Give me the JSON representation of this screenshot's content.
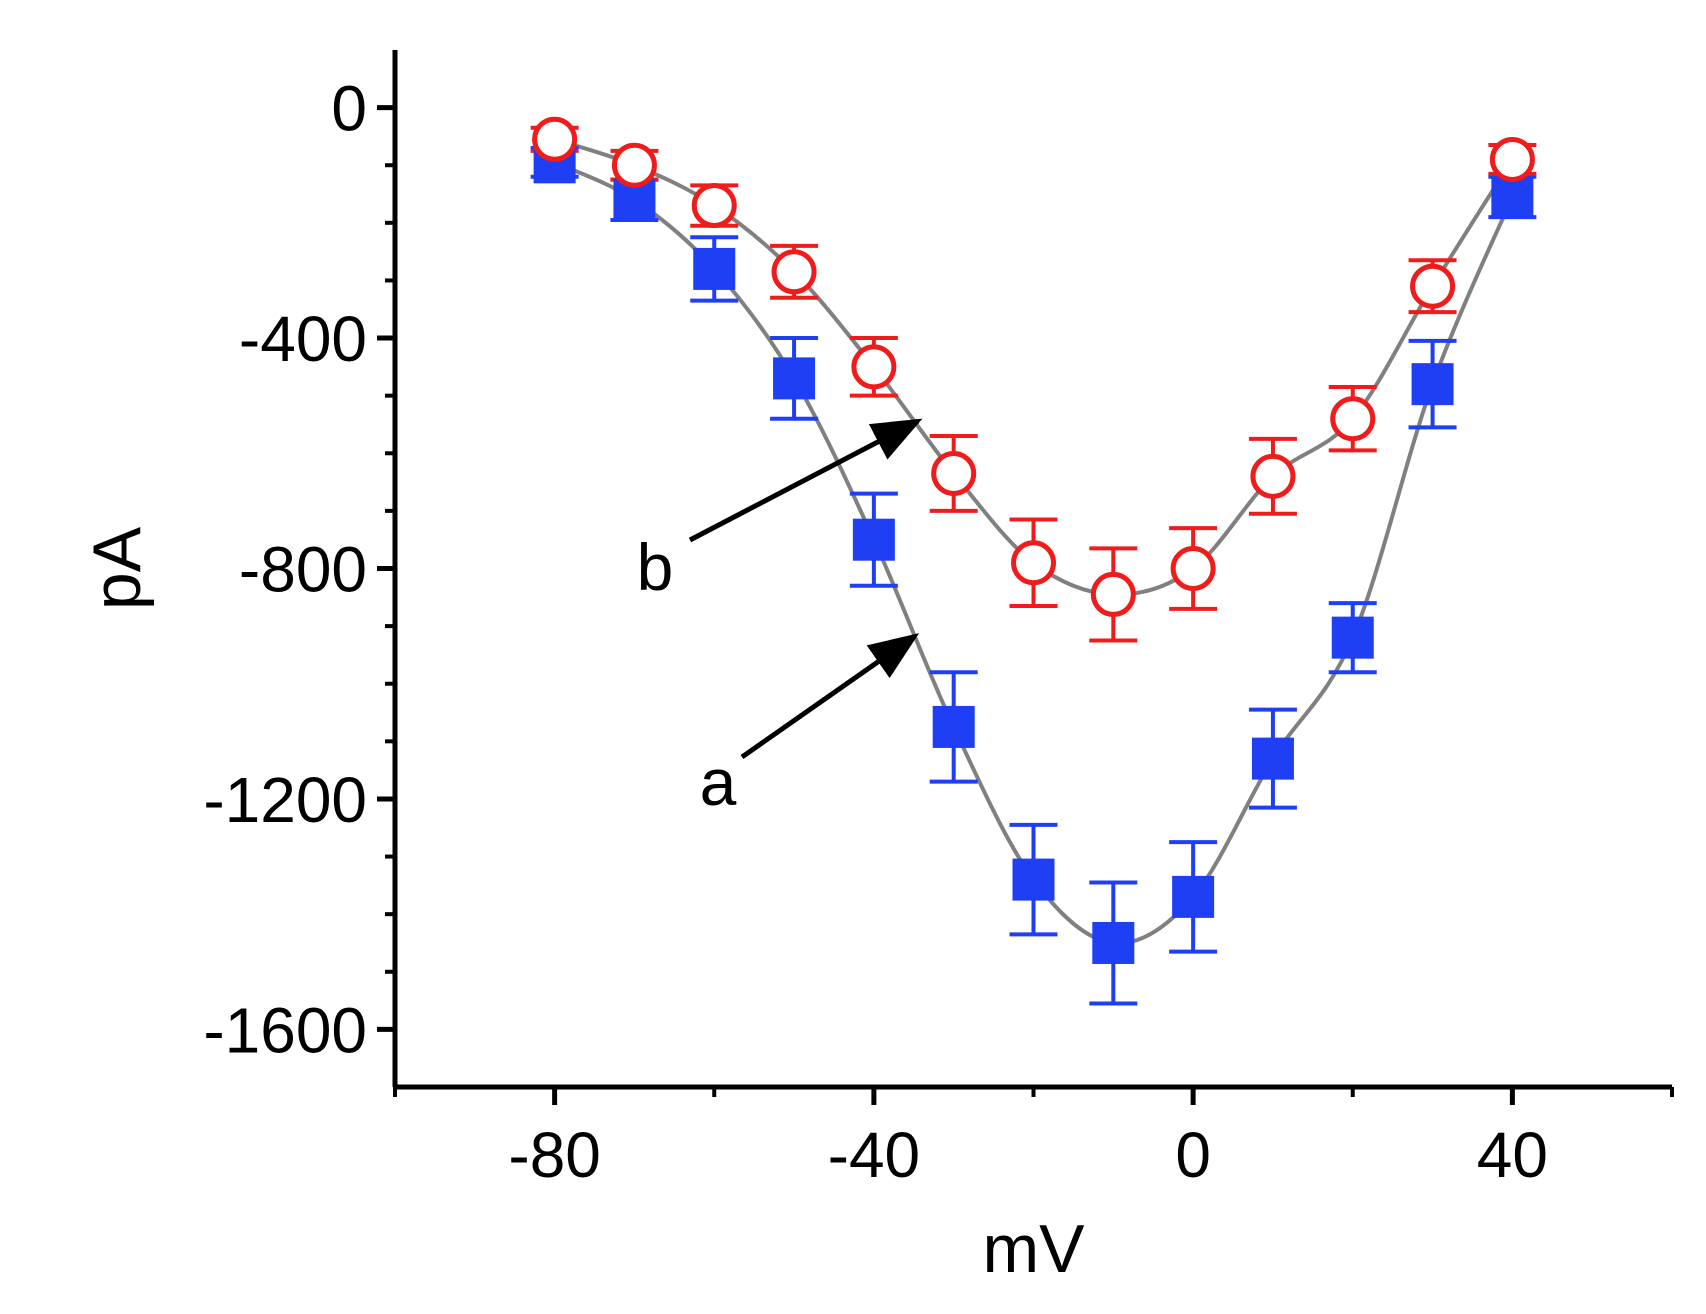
{
  "chart_data": {
    "type": "line",
    "title": "",
    "xlabel": "mV",
    "ylabel": "pA",
    "xlim": [
      -100,
      60
    ],
    "ylim": [
      -1700,
      100
    ],
    "xticks": [
      -80,
      -40,
      0,
      40
    ],
    "xtick_labels": [
      "-80",
      "-40",
      "0",
      "40"
    ],
    "yticks": [
      0,
      -400,
      -800,
      -1200,
      -1600
    ],
    "ytick_labels": [
      "0",
      "-400",
      "-800",
      "-1200",
      "-1600"
    ],
    "grid": false,
    "legend": "none",
    "x": [
      -80,
      -70,
      -60,
      -50,
      -40,
      -30,
      -20,
      -10,
      0,
      10,
      20,
      30,
      40
    ],
    "series": [
      {
        "name": "a",
        "marker": "filled-square",
        "color": "#1f3ff5",
        "values": [
          -95,
          -160,
          -280,
          -470,
          -750,
          -1075,
          -1340,
          -1450,
          -1370,
          -1130,
          -920,
          -480,
          -155
        ],
        "errors": [
          25,
          35,
          55,
          70,
          80,
          95,
          95,
          105,
          95,
          85,
          60,
          75,
          35
        ]
      },
      {
        "name": "b",
        "marker": "open-circle",
        "color": "#f01c1c",
        "values": [
          -55,
          -100,
          -170,
          -285,
          -450,
          -635,
          -790,
          -845,
          -800,
          -640,
          -540,
          -310,
          -90
        ],
        "errors": [
          20,
          25,
          35,
          45,
          50,
          65,
          75,
          80,
          70,
          65,
          55,
          45,
          25
        ]
      }
    ],
    "fit_line_color": "#808080",
    "annotations": [
      {
        "text": "a",
        "points_to_series": "a"
      },
      {
        "text": "b",
        "points_to_series": "b"
      }
    ]
  }
}
